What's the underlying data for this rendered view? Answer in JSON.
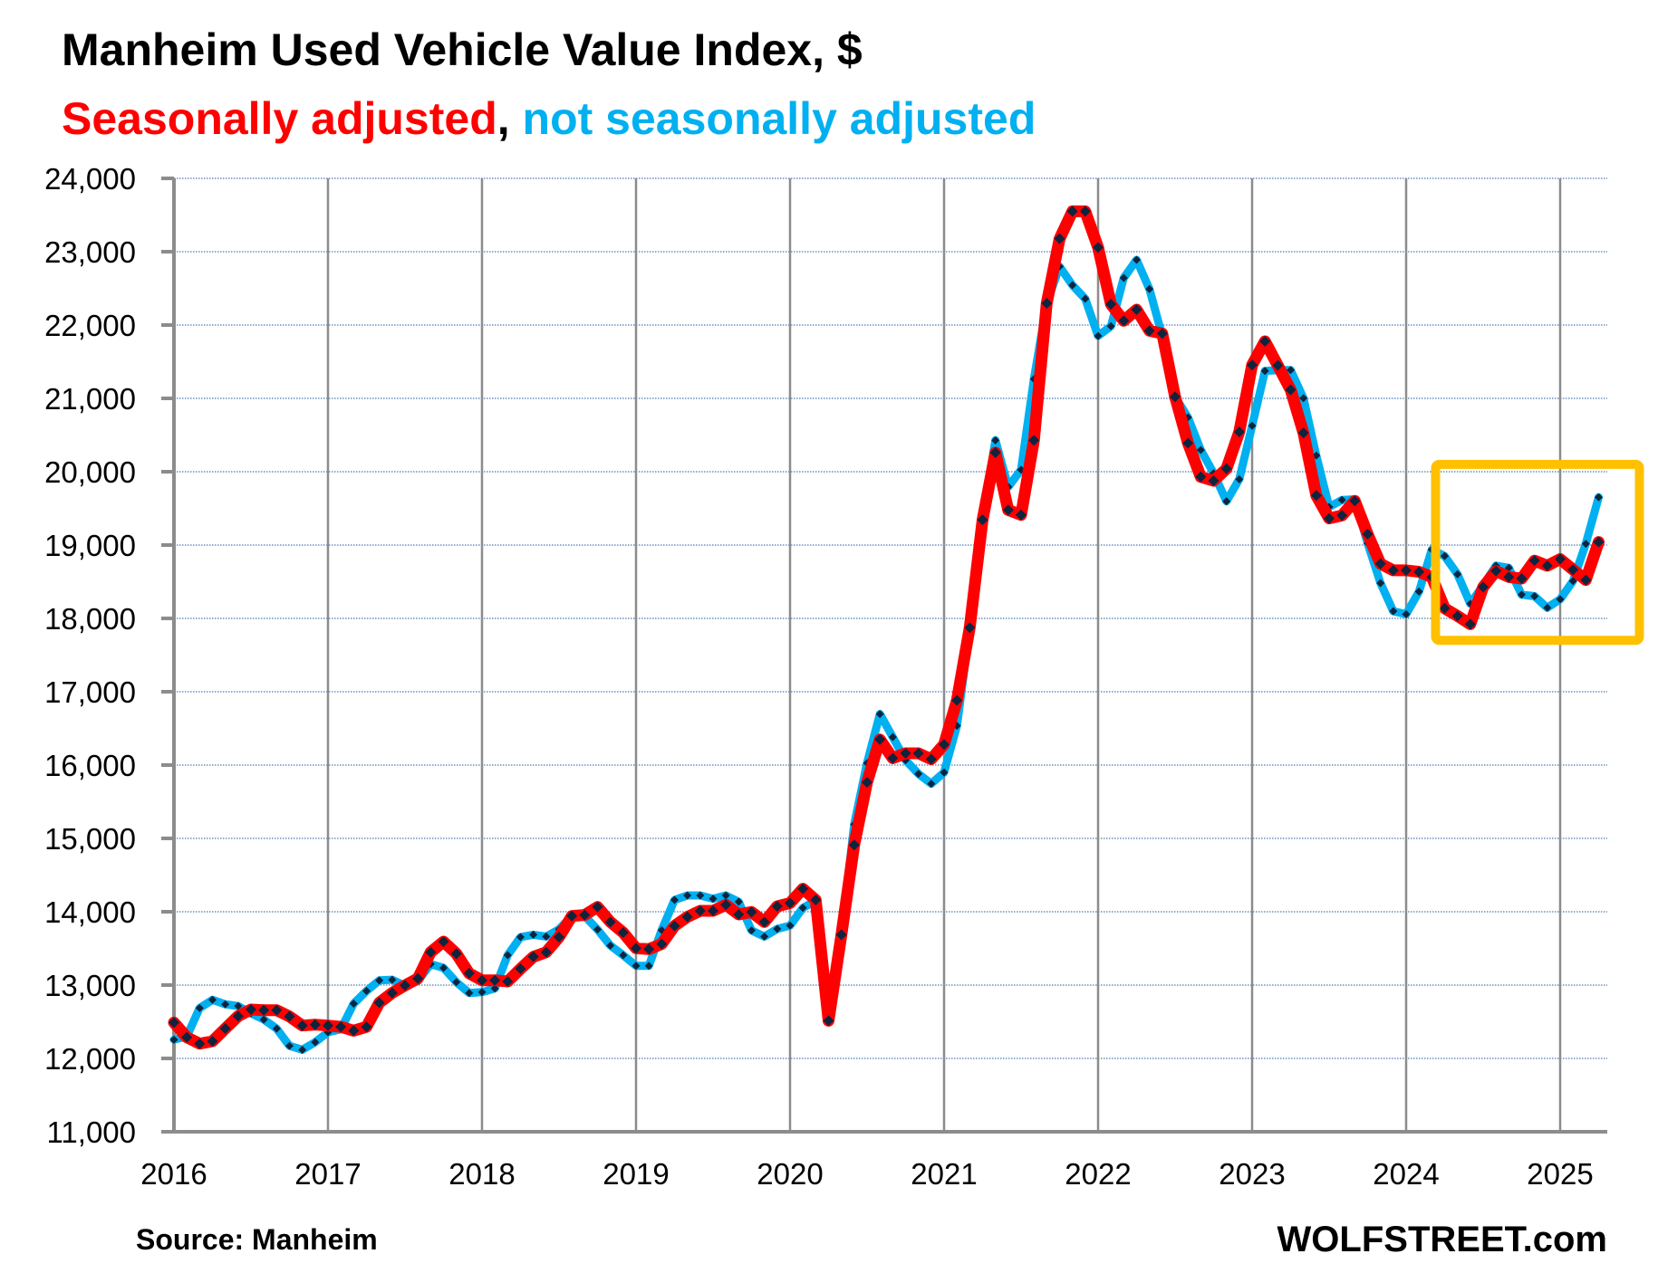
{
  "chart_data": {
    "type": "line",
    "title": "Manheim Used Vehicle Value Index, $",
    "subtitle_parts": [
      {
        "text": "Seasonally adjusted",
        "color": "#FF0000"
      },
      {
        "text": ", ",
        "color": "#000000"
      },
      {
        "text": "not seasonally adjusted",
        "color": "#00B0F0"
      }
    ],
    "xlabel": "",
    "ylabel": "",
    "x_tick_labels": [
      "2016",
      "2017",
      "2018",
      "2019",
      "2020",
      "2021",
      "2022",
      "2023",
      "2024",
      "2025"
    ],
    "y_tick_labels": [
      "11,000",
      "12,000",
      "13,000",
      "14,000",
      "15,000",
      "16,000",
      "17,000",
      "18,000",
      "19,000",
      "20,000",
      "21,000",
      "22,000",
      "23,000",
      "24,000"
    ],
    "ylim": [
      11000,
      24000
    ],
    "y_step": 1000,
    "x_start": "2016-01",
    "x_end": "2025-04",
    "x_frequency": "monthly",
    "grid": {
      "horizontal": true,
      "vertical": true
    },
    "legend": "subtitle",
    "series": [
      {
        "name": "Not seasonally adjusted",
        "color": "#00B0F0",
        "marker_color": "#0F243E",
        "values": [
          12255,
          12300,
          12687,
          12799,
          12738,
          12714,
          12615,
          12530,
          12406,
          12172,
          12118,
          12221,
          12357,
          12397,
          12747,
          12920,
          13064,
          13073,
          12990,
          13056,
          13287,
          13234,
          13040,
          12892,
          12904,
          12954,
          13407,
          13654,
          13687,
          13662,
          13760,
          13942,
          13942,
          13757,
          13539,
          13407,
          13263,
          13263,
          13749,
          14160,
          14222,
          14222,
          14177,
          14222,
          14136,
          13745,
          13662,
          13765,
          13811,
          14053,
          14148,
          12548,
          13686,
          15191,
          16027,
          16696,
          16381,
          16067,
          15880,
          15746,
          15900,
          16535,
          17853,
          19344,
          20428,
          19793,
          20027,
          21264,
          22296,
          22798,
          22543,
          22358,
          21852,
          21984,
          22642,
          22889,
          22490,
          21852,
          21021,
          20741,
          20297,
          19980,
          19597,
          19897,
          20626,
          21374,
          21386,
          21386,
          21003,
          20220,
          19520,
          19615,
          19623,
          19025,
          18481,
          18098,
          18057,
          18366,
          18938,
          18850,
          18602,
          18200,
          18450,
          18718,
          18689,
          18324,
          18303,
          18145,
          18261,
          18510,
          19017,
          19652
        ]
      },
      {
        "name": "Seasonally adjusted",
        "color": "#FF0000",
        "marker_color": "#0F243E",
        "values": [
          12489,
          12288,
          12201,
          12234,
          12407,
          12576,
          12667,
          12658,
          12658,
          12572,
          12448,
          12460,
          12448,
          12431,
          12378,
          12431,
          12760,
          12892,
          12995,
          13090,
          13448,
          13592,
          13428,
          13160,
          13065,
          13065,
          13049,
          13222,
          13387,
          13448,
          13654,
          13942,
          13955,
          14066,
          13860,
          13716,
          13502,
          13490,
          13560,
          13807,
          13930,
          14012,
          14012,
          14095,
          13963,
          13996,
          13860,
          14074,
          14119,
          14313,
          14160,
          12514,
          13686,
          14910,
          15766,
          16348,
          16094,
          16161,
          16161,
          16080,
          16281,
          16883,
          17873,
          19344,
          20261,
          19478,
          19411,
          20428,
          22296,
          23177,
          23551,
          23551,
          23058,
          22284,
          22058,
          22210,
          21922,
          21885,
          21021,
          20391,
          19930,
          19877,
          20041,
          20543,
          21456,
          21778,
          21450,
          21118,
          20529,
          19676,
          19363,
          19404,
          19602,
          19149,
          18745,
          18655,
          18655,
          18634,
          18564,
          18137,
          18033,
          17921,
          18427,
          18647,
          18564,
          18543,
          18788,
          18718,
          18809,
          18664,
          18523,
          19041
        ]
      }
    ],
    "annotations": [
      {
        "type": "highlight-box",
        "color": "#FFC000",
        "x_range": [
          "2024-04",
          "2025-04"
        ],
        "y_range": [
          17700,
          20100
        ]
      }
    ]
  },
  "footer": {
    "source": "Source: Manheim",
    "brand": "WOLFSTREET.com"
  }
}
